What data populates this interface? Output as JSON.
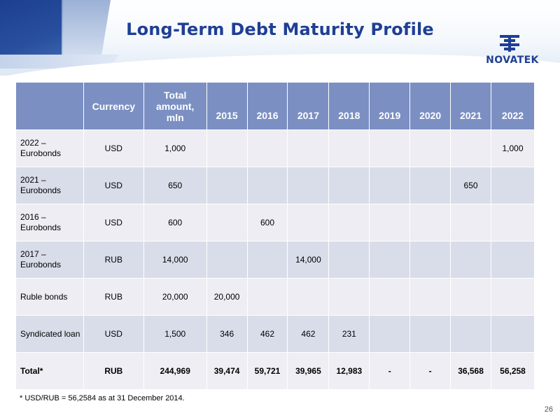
{
  "title": "Long-Term Debt Maturity Profile",
  "logo": {
    "text": "NOVATEK",
    "icon": "novatek-logo-mark-icon"
  },
  "colors": {
    "title": "#1f3f94",
    "header_bg": "#7b8fc2",
    "row_light": "#ededf3",
    "row_dark": "#d9dde9",
    "corner_dark": "#28509e"
  },
  "table": {
    "headers": [
      "",
      "Currency",
      "Total amount, mln",
      "2015",
      "2016",
      "2017",
      "2018",
      "2019",
      "2020",
      "2021",
      "2022"
    ],
    "rows": [
      [
        "2022 – Eurobonds",
        "USD",
        "1,000",
        "",
        "",
        "",
        "",
        "",
        "",
        "",
        "1,000"
      ],
      [
        "2021 – Eurobonds",
        "USD",
        "650",
        "",
        "",
        "",
        "",
        "",
        "",
        "650",
        ""
      ],
      [
        "2016 – Eurobonds",
        "USD",
        "600",
        "",
        "600",
        "",
        "",
        "",
        "",
        "",
        ""
      ],
      [
        "2017 – Eurobonds",
        "RUB",
        "14,000",
        "",
        "",
        "14,000",
        "",
        "",
        "",
        "",
        ""
      ],
      [
        "Ruble bonds",
        "RUB",
        "20,000",
        "20,000",
        "",
        "",
        "",
        "",
        "",
        "",
        ""
      ],
      [
        "Syndicated loan",
        "USD",
        "1,500",
        "346",
        "462",
        "462",
        "231",
        "",
        "",
        "",
        ""
      ]
    ],
    "total": [
      "Total*",
      "RUB",
      "244,969",
      "39,474",
      "59,721",
      "39,965",
      "12,983",
      "-",
      "-",
      "36,568",
      "56,258"
    ]
  },
  "footnote": "* USD/RUB = 56,2584 as at 31 December 2014.",
  "page_number": "26"
}
